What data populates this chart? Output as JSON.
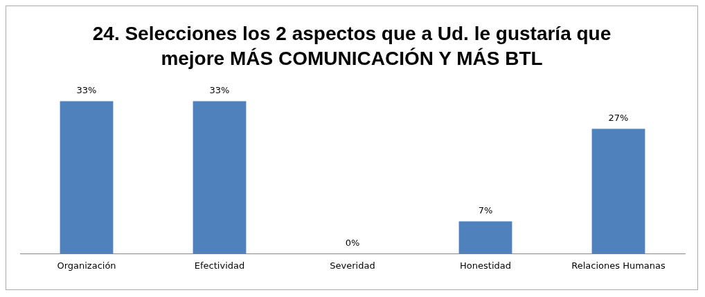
{
  "chart_data": {
    "type": "bar",
    "title": "24. Selecciones los 2 aspectos que a Ud. le gustaría que mejore MÁS COMUNICACIÓN Y MÁS BTL",
    "categories": [
      "Organización",
      "Efectividad",
      "Severidad",
      "Honestidad",
      "Relaciones Humanas"
    ],
    "values": [
      33,
      33,
      0,
      7,
      27
    ],
    "value_labels": [
      "33%",
      "33%",
      "0%",
      "7%",
      "27%"
    ],
    "color": "#4f81bd",
    "grid": false,
    "legend": false
  }
}
